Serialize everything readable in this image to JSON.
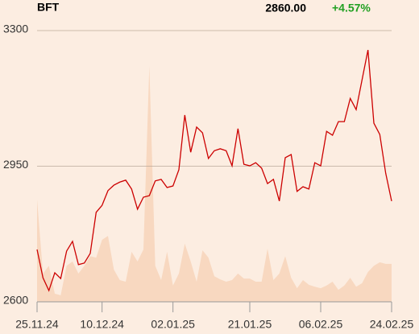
{
  "chart_data": {
    "type": "line",
    "title": "BFT",
    "price": "2860.00",
    "change": "+4.57%",
    "change_color": "#22a022",
    "categories": [
      "25.11.24",
      null,
      null,
      null,
      null,
      null,
      null,
      null,
      null,
      null,
      null,
      "10.12.24",
      null,
      null,
      null,
      null,
      null,
      null,
      null,
      null,
      null,
      null,
      null,
      "02.01.25",
      null,
      null,
      null,
      null,
      null,
      null,
      null,
      null,
      null,
      null,
      null,
      null,
      "21.01.25",
      null,
      null,
      null,
      null,
      null,
      null,
      null,
      null,
      null,
      null,
      null,
      "06.02.25",
      null,
      null,
      null,
      null,
      null,
      null,
      null,
      null,
      null,
      null,
      null,
      "24.02.25"
    ],
    "series": [
      {
        "type": "area",
        "color": "#f8d8c0",
        "values": [
          2864,
          2673,
          2693,
          2621,
          2617,
          2693,
          2704,
          2673,
          2693,
          2718,
          2714,
          2760,
          2770,
          2683,
          2656,
          2652,
          2729,
          2704,
          2735,
          3209,
          2693,
          2656,
          2729,
          2642,
          2673,
          2750,
          2704,
          2652,
          2733,
          2714,
          2666,
          2658,
          2652,
          2656,
          2673,
          2660,
          2660,
          2652,
          2652,
          2737,
          2656,
          2673,
          2718,
          2662,
          2635,
          2656,
          2644,
          2639,
          2635,
          2642,
          2652,
          2631,
          2642,
          2662,
          2639,
          2648,
          2677,
          2693,
          2702,
          2698,
          2698
        ]
      },
      {
        "type": "line",
        "color": "#cc0000",
        "values": [
          2735,
          2662,
          2629,
          2675,
          2660,
          2731,
          2756,
          2696,
          2700,
          2725,
          2831,
          2849,
          2887,
          2901,
          2909,
          2914,
          2891,
          2839,
          2870,
          2874,
          2912,
          2916,
          2895,
          2899,
          2941,
          3082,
          2986,
          3051,
          3036,
          2970,
          2990,
          2995,
          2990,
          2951,
          3047,
          2955,
          2951,
          2959,
          2945,
          2905,
          2916,
          2860,
          2972,
          2980,
          2885,
          2897,
          2891,
          2959,
          2951,
          3040,
          3030,
          3065,
          3065,
          3125,
          3096,
          3173,
          3250,
          3061,
          3032,
          2932,
          2860
        ]
      }
    ],
    "ylim": [
      2600,
      3300
    ],
    "yticks": [
      2600,
      2950,
      3300
    ],
    "grid": true
  }
}
